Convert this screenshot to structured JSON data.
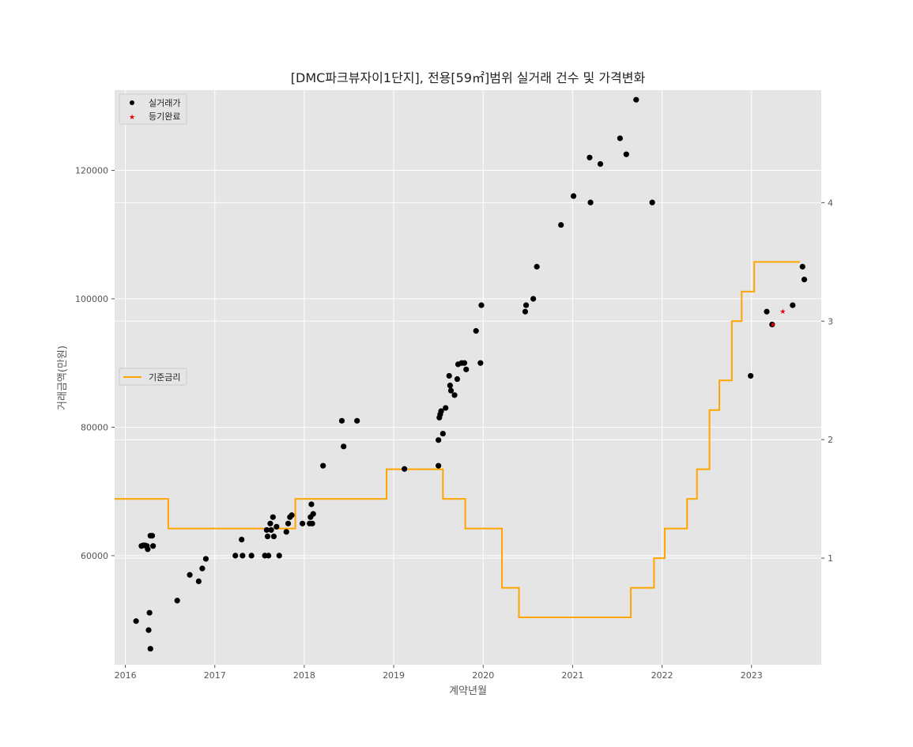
{
  "chart_data": {
    "type": "scatter",
    "title": "[DMC파크뷰자이1단지], 전용[59㎡]범위 실거래 건수 및 가격변화",
    "xlabel": "계약년월",
    "ylabel": "거래금액(만원)",
    "x_ticks": [
      "2016",
      "2017",
      "2018",
      "2019",
      "2020",
      "2021",
      "2022",
      "2023"
    ],
    "xlim": [
      2015.88,
      2023.78
    ],
    "ylim": [
      43000,
      132500
    ],
    "y_ticks": [
      60000,
      80000,
      100000,
      120000
    ],
    "y2lim": [
      0.1,
      4.95
    ],
    "y2_ticks": [
      1,
      2,
      3,
      4
    ],
    "grid": true,
    "legend_top": {
      "placement": "top-left",
      "entries": [
        "실거래가",
        "등기완료"
      ]
    },
    "legend_mid": {
      "placement": "center-left",
      "entries": [
        "기준금리"
      ]
    },
    "colors": {
      "trades": "#000000",
      "registered": "#e8000b",
      "rate": "#ffa500",
      "plot_bg": "#e5e5e5",
      "grid": "#ffffff"
    },
    "series": [
      {
        "name": "실거래가",
        "marker": "circle",
        "points": [
          [
            2016.12,
            49800
          ],
          [
            2016.18,
            61500
          ],
          [
            2016.2,
            61600
          ],
          [
            2016.22,
            61600
          ],
          [
            2016.24,
            61500
          ],
          [
            2016.25,
            61000
          ],
          [
            2016.26,
            48400
          ],
          [
            2016.27,
            51100
          ],
          [
            2016.28,
            63100
          ],
          [
            2016.3,
            63100
          ],
          [
            2016.31,
            61500
          ],
          [
            2016.28,
            45500
          ],
          [
            2016.58,
            53000
          ],
          [
            2016.72,
            57000
          ],
          [
            2016.82,
            56000
          ],
          [
            2016.86,
            58000
          ],
          [
            2016.9,
            59500
          ],
          [
            2017.23,
            60000
          ],
          [
            2017.3,
            62500
          ],
          [
            2017.31,
            60000
          ],
          [
            2017.41,
            60000
          ],
          [
            2017.56,
            60000
          ],
          [
            2017.58,
            64000
          ],
          [
            2017.59,
            63000
          ],
          [
            2017.6,
            60000
          ],
          [
            2017.62,
            65000
          ],
          [
            2017.63,
            64000
          ],
          [
            2017.65,
            66000
          ],
          [
            2017.66,
            63000
          ],
          [
            2017.69,
            64500
          ],
          [
            2017.72,
            60000
          ],
          [
            2017.8,
            63700
          ],
          [
            2017.82,
            65000
          ],
          [
            2017.84,
            66000
          ],
          [
            2017.86,
            66300
          ],
          [
            2017.98,
            65000
          ],
          [
            2018.06,
            65000
          ],
          [
            2018.07,
            66000
          ],
          [
            2018.08,
            68000
          ],
          [
            2018.09,
            65000
          ],
          [
            2018.1,
            66500
          ],
          [
            2018.21,
            74000
          ],
          [
            2018.42,
            81000
          ],
          [
            2018.44,
            77000
          ],
          [
            2018.59,
            81000
          ],
          [
            2019.12,
            73500
          ],
          [
            2019.5,
            74000
          ],
          [
            2019.5,
            78000
          ],
          [
            2019.51,
            81500
          ],
          [
            2019.52,
            82000
          ],
          [
            2019.53,
            82500
          ],
          [
            2019.55,
            79000
          ],
          [
            2019.58,
            83000
          ],
          [
            2019.62,
            88000
          ],
          [
            2019.63,
            86500
          ],
          [
            2019.64,
            85700
          ],
          [
            2019.68,
            85000
          ],
          [
            2019.71,
            87500
          ],
          [
            2019.72,
            89800
          ],
          [
            2019.76,
            90000
          ],
          [
            2019.79,
            90000
          ],
          [
            2019.81,
            89000
          ],
          [
            2019.92,
            95000
          ],
          [
            2019.97,
            90000
          ],
          [
            2019.98,
            99000
          ],
          [
            2020.47,
            98000
          ],
          [
            2020.48,
            99000
          ],
          [
            2020.56,
            100000
          ],
          [
            2020.6,
            105000
          ],
          [
            2020.87,
            111500
          ],
          [
            2021.01,
            116000
          ],
          [
            2021.19,
            122000
          ],
          [
            2021.2,
            115000
          ],
          [
            2021.31,
            121000
          ],
          [
            2021.53,
            125000
          ],
          [
            2021.6,
            122500
          ],
          [
            2021.71,
            131000
          ],
          [
            2021.89,
            115000
          ],
          [
            2022.99,
            88000
          ],
          [
            2023.17,
            98000
          ],
          [
            2023.23,
            96000
          ],
          [
            2023.46,
            99000
          ],
          [
            2023.57,
            105000
          ],
          [
            2023.59,
            103000
          ]
        ]
      },
      {
        "name": "등기완료",
        "marker": "star",
        "points": [
          [
            2023.24,
            96000
          ],
          [
            2023.35,
            98000
          ]
        ]
      },
      {
        "name": "기준금리",
        "style": "step",
        "x": [
          2015.88,
          2016.48,
          2017.9,
          2018.92,
          2019.55,
          2019.8,
          2020.21,
          2020.4,
          2021.65,
          2021.91,
          2022.03,
          2022.28,
          2022.39,
          2022.53,
          2022.64,
          2022.78,
          2022.89,
          2023.03,
          2023.54
        ],
        "y": [
          1.5,
          1.25,
          1.5,
          1.75,
          1.5,
          1.25,
          0.75,
          0.5,
          0.75,
          1.0,
          1.25,
          1.5,
          1.75,
          2.25,
          2.5,
          3.0,
          3.25,
          3.5,
          3.5
        ]
      }
    ]
  }
}
